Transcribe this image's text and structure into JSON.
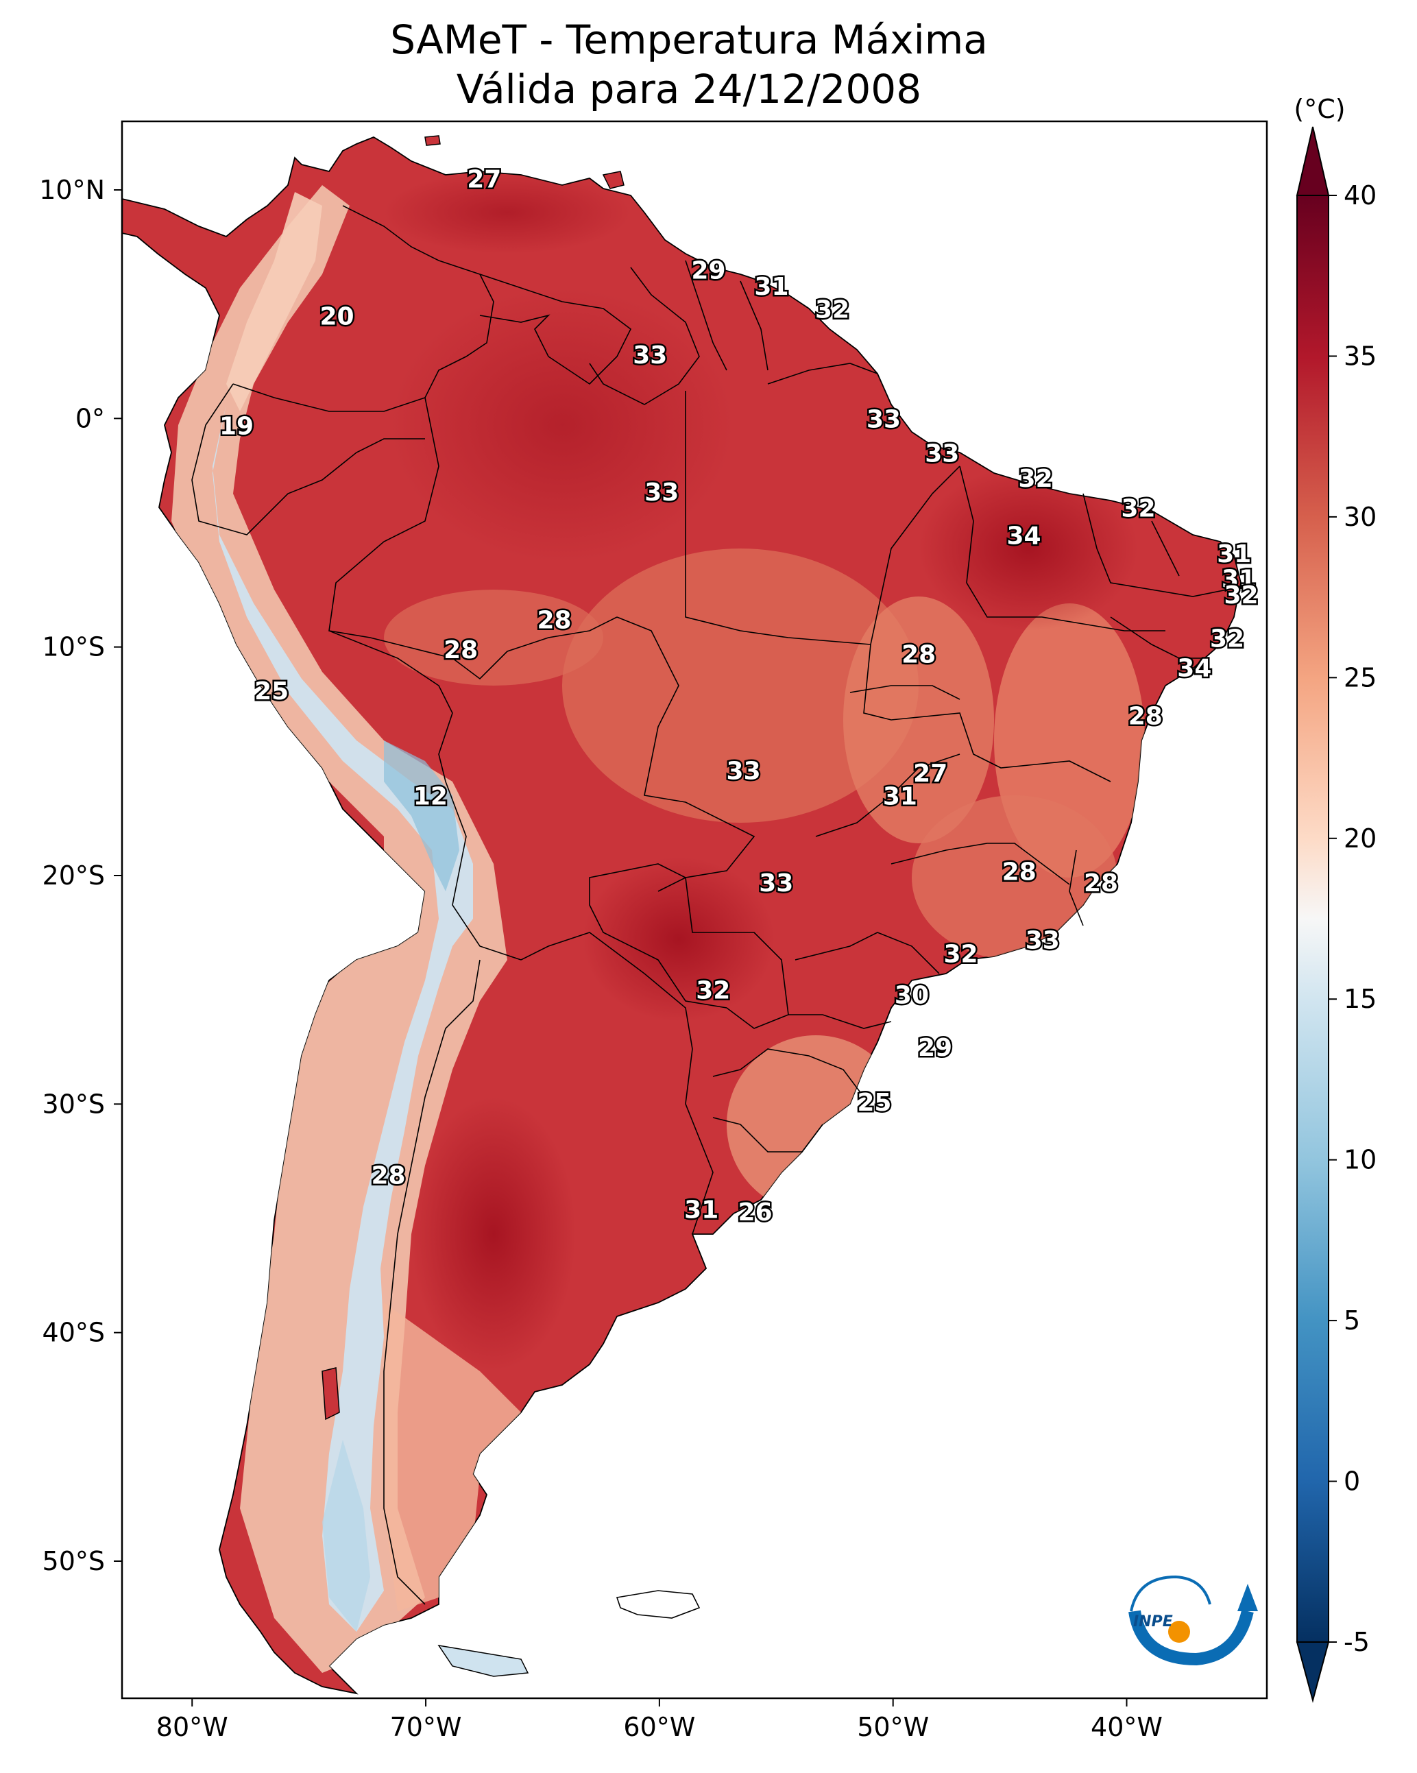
{
  "title_line1": "SAMeT - Temperatura Máxima",
  "title_line2": "Válida para 24/12/2008",
  "map": {
    "lon_range": [
      -83,
      -34
    ],
    "lat_range": [
      -56,
      13
    ],
    "lon_ticks": [
      {
        "value": -80,
        "label": "80°W"
      },
      {
        "value": -70,
        "label": "70°W"
      },
      {
        "value": -60,
        "label": "60°W"
      },
      {
        "value": -50,
        "label": "50°W"
      },
      {
        "value": -40,
        "label": "40°W"
      }
    ],
    "lat_ticks": [
      {
        "value": 10,
        "label": "10°N"
      },
      {
        "value": 0,
        "label": "0°"
      },
      {
        "value": -10,
        "label": "10°S"
      },
      {
        "value": -20,
        "label": "20°S"
      },
      {
        "value": -30,
        "label": "30°S"
      },
      {
        "value": -40,
        "label": "40°S"
      },
      {
        "value": -50,
        "label": "50°S"
      }
    ],
    "temperature_labels": [
      {
        "lon": -67.5,
        "lat": 10.5,
        "text": "27"
      },
      {
        "lon": -57.9,
        "lat": 6.5,
        "text": "29"
      },
      {
        "lon": -55.2,
        "lat": 5.8,
        "text": "31"
      },
      {
        "lon": -52.6,
        "lat": 4.8,
        "text": "32"
      },
      {
        "lon": -73.8,
        "lat": 4.5,
        "text": "20"
      },
      {
        "lon": -60.4,
        "lat": 2.8,
        "text": "33"
      },
      {
        "lon": -78.1,
        "lat": -0.3,
        "text": "19"
      },
      {
        "lon": -50.4,
        "lat": 0.0,
        "text": "33"
      },
      {
        "lon": -47.9,
        "lat": -1.5,
        "text": "33"
      },
      {
        "lon": -43.9,
        "lat": -2.6,
        "text": "32"
      },
      {
        "lon": -59.9,
        "lat": -3.2,
        "text": "33"
      },
      {
        "lon": -39.5,
        "lat": -3.9,
        "text": "32"
      },
      {
        "lon": -44.4,
        "lat": -5.1,
        "text": "34"
      },
      {
        "lon": -35.4,
        "lat": -5.9,
        "text": "31"
      },
      {
        "lon": -35.2,
        "lat": -7.0,
        "text": "31"
      },
      {
        "lon": -35.1,
        "lat": -7.7,
        "text": "32"
      },
      {
        "lon": -64.5,
        "lat": -8.8,
        "text": "28"
      },
      {
        "lon": -68.5,
        "lat": -10.1,
        "text": "28"
      },
      {
        "lon": -35.7,
        "lat": -9.6,
        "text": "32"
      },
      {
        "lon": -48.9,
        "lat": -10.3,
        "text": "28"
      },
      {
        "lon": -37.1,
        "lat": -10.9,
        "text": "34"
      },
      {
        "lon": -76.6,
        "lat": -11.9,
        "text": "25"
      },
      {
        "lon": -39.2,
        "lat": -13.0,
        "text": "28"
      },
      {
        "lon": -56.4,
        "lat": -15.4,
        "text": "33"
      },
      {
        "lon": -48.4,
        "lat": -15.5,
        "text": "27"
      },
      {
        "lon": -49.7,
        "lat": -16.5,
        "text": "31"
      },
      {
        "lon": -69.8,
        "lat": -16.5,
        "text": "12"
      },
      {
        "lon": -55.0,
        "lat": -20.3,
        "text": "33"
      },
      {
        "lon": -44.6,
        "lat": -19.8,
        "text": "28"
      },
      {
        "lon": -41.1,
        "lat": -20.3,
        "text": "28"
      },
      {
        "lon": -43.6,
        "lat": -22.8,
        "text": "33"
      },
      {
        "lon": -47.1,
        "lat": -23.4,
        "text": "32"
      },
      {
        "lon": -57.7,
        "lat": -25.0,
        "text": "32"
      },
      {
        "lon": -49.2,
        "lat": -25.2,
        "text": "30"
      },
      {
        "lon": -48.2,
        "lat": -27.5,
        "text": "29"
      },
      {
        "lon": -50.8,
        "lat": -29.9,
        "text": "25"
      },
      {
        "lon": -71.6,
        "lat": -33.1,
        "text": "28"
      },
      {
        "lon": -58.2,
        "lat": -34.6,
        "text": "31"
      },
      {
        "lon": -55.9,
        "lat": -34.7,
        "text": "26"
      }
    ]
  },
  "colorbar": {
    "unit_label": "(°C)",
    "min": -5,
    "max": 40,
    "ticks": [
      {
        "value": 40,
        "label": "40"
      },
      {
        "value": 35,
        "label": "35"
      },
      {
        "value": 30,
        "label": "30"
      },
      {
        "value": 25,
        "label": "25"
      },
      {
        "value": 20,
        "label": "20"
      },
      {
        "value": 15,
        "label": "15"
      },
      {
        "value": 10,
        "label": "10"
      },
      {
        "value": 5,
        "label": "5"
      },
      {
        "value": 0,
        "label": "0"
      },
      {
        "value": -5,
        "label": "-5"
      }
    ],
    "colors": {
      "max_extend": "#67001f",
      "c40": "#67001f",
      "c35": "#b2182b",
      "c30": "#d6604d",
      "c25": "#f4a582",
      "c20": "#fddbc7",
      "c17": "#f7f7f7",
      "c15": "#d1e5f0",
      "c10": "#92c5de",
      "c5": "#4393c3",
      "c0": "#2166ac",
      "cm5": "#053061",
      "min_extend": "#053061"
    }
  },
  "colors": {
    "hot": "#c0272d",
    "warm": "#d9533f",
    "mild": "#ec8d72",
    "cool": "#f6cdb8",
    "cold": "#cfe3ef",
    "coldest": "#8dc0dc"
  },
  "logo_text": "INPE"
}
